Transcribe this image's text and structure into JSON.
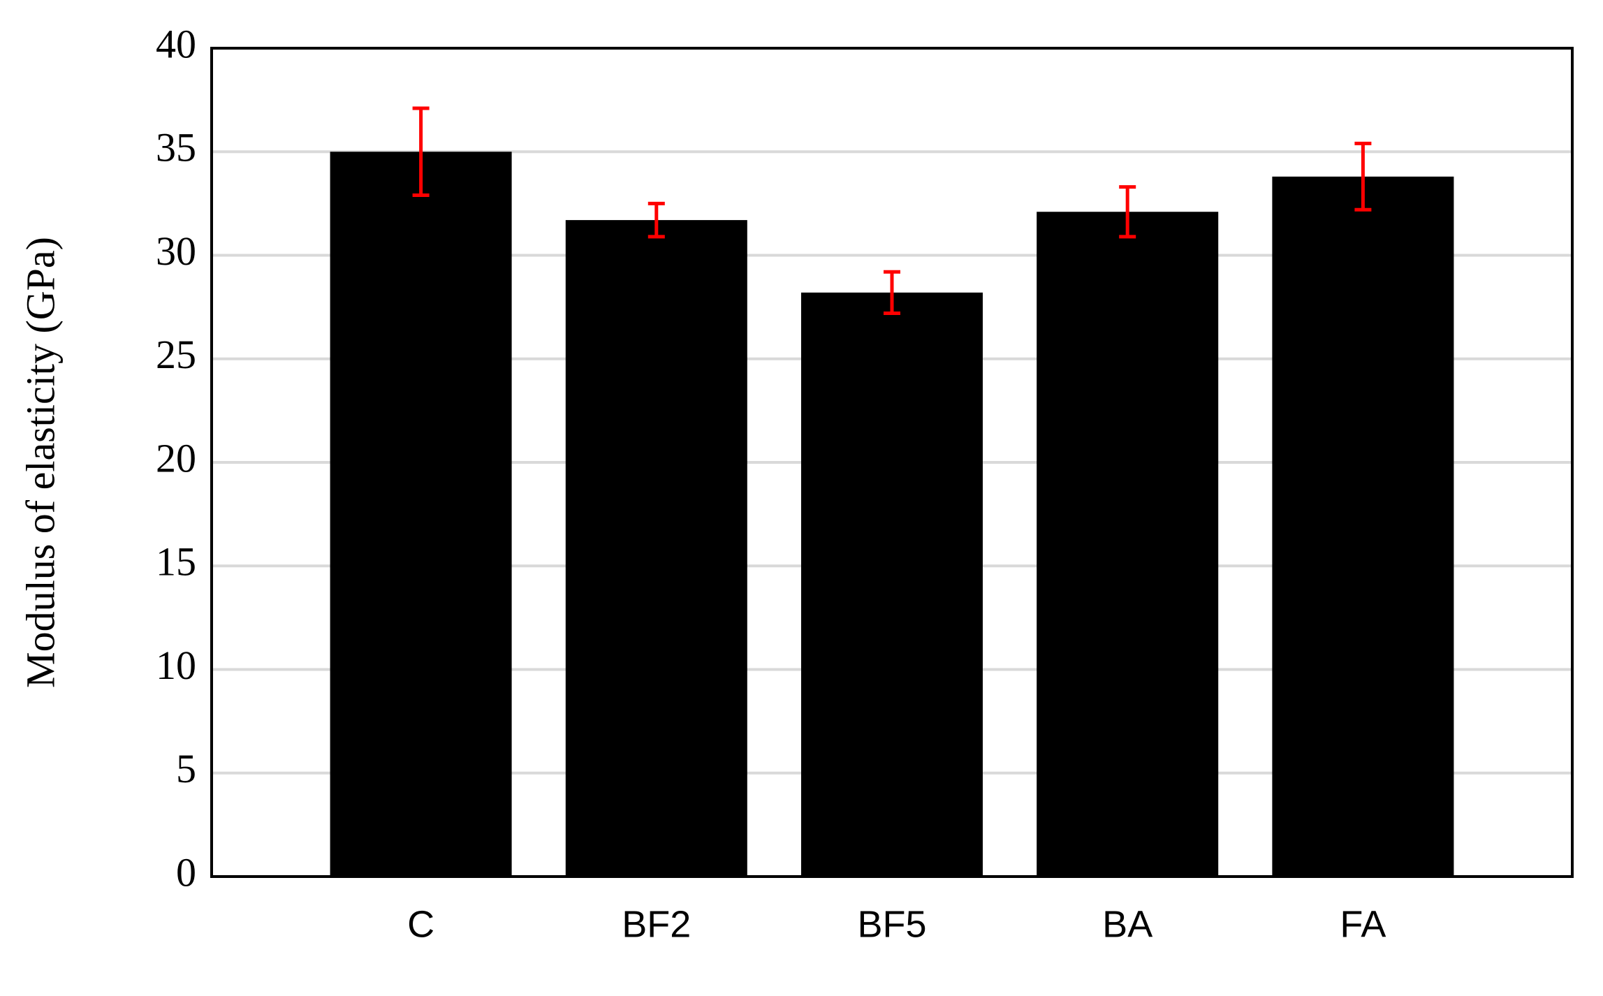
{
  "chart_data": {
    "type": "bar",
    "y_label": "Modulus of elasticity  (GPa)",
    "categories": [
      "C",
      "BF2",
      "BF5",
      "BA",
      "FA"
    ],
    "values": [
      35.0,
      31.7,
      28.2,
      32.1,
      33.8
    ],
    "errors": [
      2.1,
      0.8,
      1.0,
      1.2,
      1.6
    ],
    "color": "#000000",
    "error_color": "#ff0000",
    "ylim": [
      0,
      40
    ],
    "yticks": [
      0,
      5,
      10,
      15,
      20,
      25,
      30,
      35,
      40
    ],
    "grid": true
  }
}
